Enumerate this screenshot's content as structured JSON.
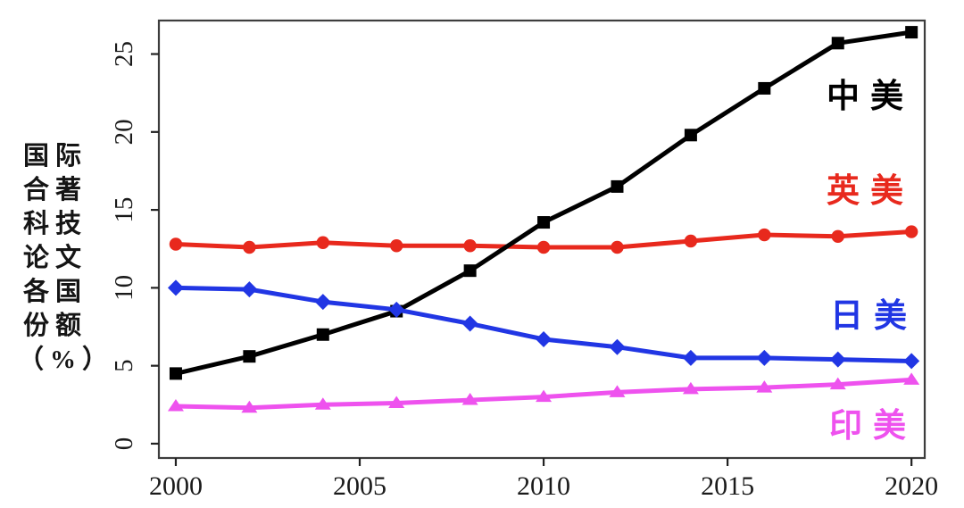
{
  "chart_data": {
    "type": "line",
    "title": "",
    "xlabel": "",
    "ylabel": "国际合著科技论文各国份额（%）",
    "ylabel_lines": [
      "国际",
      "合著",
      "科技",
      "论文",
      "各国",
      "份额",
      "（%）"
    ],
    "x": [
      2000,
      2002,
      2004,
      2006,
      2008,
      2010,
      2012,
      2014,
      2016,
      2018,
      2020
    ],
    "xticks": [
      2000,
      2005,
      2010,
      2015,
      2020
    ],
    "yticks": [
      0,
      5,
      10,
      15,
      20,
      25
    ],
    "xlim": [
      1999.54,
      2020.36
    ],
    "ylim": [
      -0.92,
      27.15
    ],
    "grid": false,
    "legend_position": "inside-right",
    "axis_color": "#3d3d3d",
    "tick_text_color": "#1a1a1a",
    "series": [
      {
        "name": "英美",
        "color": "#e8291d",
        "marker": "circle",
        "values": [
          12.8,
          12.6,
          12.9,
          12.7,
          12.7,
          12.6,
          12.6,
          13.0,
          13.4,
          13.3,
          13.6
        ]
      },
      {
        "name": "中美",
        "color": "#000000",
        "marker": "square",
        "values": [
          4.5,
          5.6,
          7.0,
          8.5,
          11.1,
          14.2,
          16.5,
          19.8,
          22.8,
          25.7,
          26.4
        ]
      },
      {
        "name": "日美",
        "color": "#2136e4",
        "marker": "diamond",
        "values": [
          10.0,
          9.9,
          9.1,
          8.6,
          7.7,
          6.7,
          6.2,
          5.5,
          5.5,
          5.4,
          5.3
        ]
      },
      {
        "name": "印美",
        "color": "#ee52ee",
        "marker": "triangle",
        "values": [
          2.4,
          2.3,
          2.5,
          2.6,
          2.8,
          3.0,
          3.3,
          3.5,
          3.6,
          3.8,
          4.1
        ]
      }
    ]
  }
}
